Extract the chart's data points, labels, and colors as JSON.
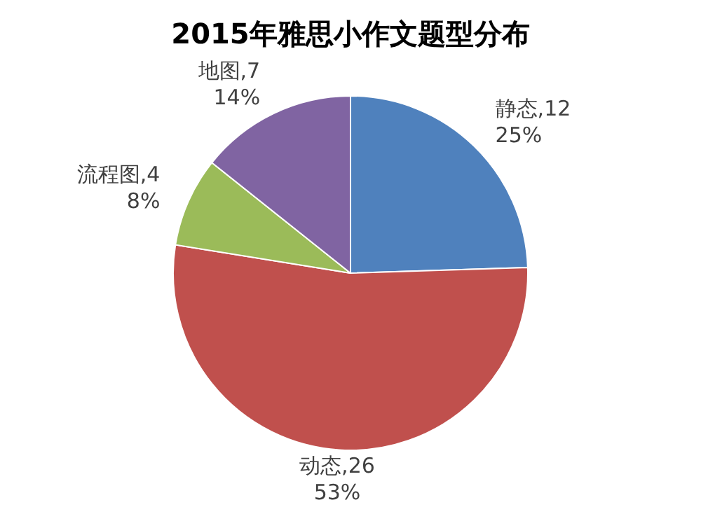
{
  "chart_data": {
    "type": "pie",
    "title": "2015年雅思小作文题型分布",
    "categories": [
      "静态",
      "动态",
      "流程图",
      "地图"
    ],
    "values": [
      12,
      26,
      4,
      7
    ],
    "colors": [
      "#4f81bd",
      "#c0504d",
      "#9bbb59",
      "#8064a2"
    ],
    "value_labels": [
      ",12\n25%",
      ",26\n53%",
      ",4\n8%",
      ",7\n14%"
    ],
    "legend": false
  }
}
